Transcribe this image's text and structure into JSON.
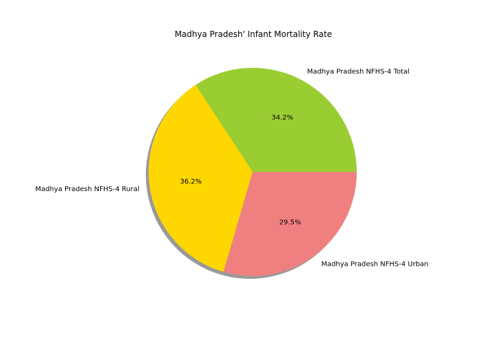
{
  "chart_data": {
    "type": "pie",
    "title": "Madhya Pradesh' Infant Mortality Rate",
    "labels": [
      "Madhya Pradesh NFHS-4 Total",
      "Madhya Pradesh NFHS-4 Rural",
      "Madhya Pradesh NFHS-4 Urban"
    ],
    "values": [
      34.2,
      36.2,
      29.5
    ],
    "percent_labels": [
      "34.2%",
      "36.2%",
      "29.5%"
    ],
    "colors": [
      "#9acd32",
      "#ffd700",
      "#f08080"
    ],
    "shadow": true,
    "start_angle_deg": 0,
    "direction": "counterclockwise"
  }
}
